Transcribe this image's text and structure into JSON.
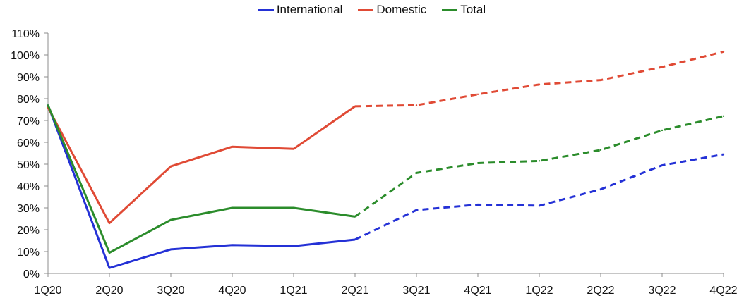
{
  "colors": {
    "international": "#2431d6",
    "domestic": "#e04a35",
    "total": "#2b8c2b",
    "axis": "#8c8c8c"
  },
  "chart_data": {
    "type": "line",
    "categories": [
      "1Q20",
      "2Q20",
      "3Q20",
      "4Q20",
      "1Q21",
      "2Q21",
      "3Q21",
      "4Q21",
      "1Q22",
      "2Q22",
      "3Q22",
      "4Q22"
    ],
    "y_ticks": [
      "0%",
      "10%",
      "20%",
      "30%",
      "40%",
      "50%",
      "60%",
      "70%",
      "80%",
      "90%",
      "100%",
      "110%"
    ],
    "ylim": [
      0,
      110
    ],
    "legend_position": "top-center",
    "grid": false,
    "dashed_from_index": 5,
    "series": [
      {
        "key": "international",
        "name": "International",
        "values": [
          77,
          2.5,
          11,
          13,
          12.5,
          15.5,
          29,
          31.5,
          31,
          38.5,
          49.5,
          54.5
        ]
      },
      {
        "key": "domestic",
        "name": "Domestic",
        "values": [
          76,
          23,
          49,
          58,
          57,
          76.5,
          77,
          82,
          86.5,
          88.5,
          94.5,
          101.5
        ]
      },
      {
        "key": "total",
        "name": "Total",
        "values": [
          77,
          9.5,
          24.5,
          30,
          30,
          26,
          46,
          50.5,
          51.5,
          56.5,
          65.5,
          72
        ]
      }
    ]
  }
}
